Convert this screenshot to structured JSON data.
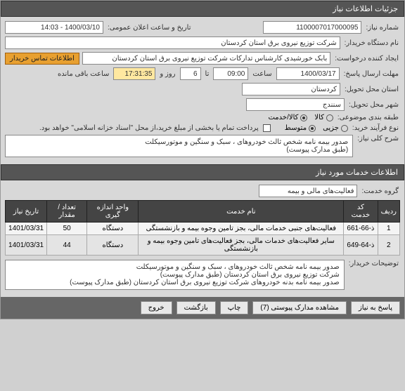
{
  "header": {
    "title": "جزئیات اطلاعات نیاز"
  },
  "fields": {
    "need_number_label": "شماره نیاز:",
    "need_number": "1100007017000095",
    "announce_label": "تاریخ و ساعت اعلان عمومی:",
    "announce_value": "1400/03/10 - 14:03",
    "buyer_label": "نام دستگاه خریدار:",
    "buyer_value": "شرکت توزیع نیروی برق استان کردستان",
    "creator_label": "ایجاد کننده درخواست:",
    "creator_value": "بابک خورشیدی کارشناس تدارکات شرکت توزیع نیروی برق استان کردستان",
    "contact_btn": "اطلاعات تماس خریدار",
    "deadline_label": "مهلت ارسال پاسخ:",
    "deadline_date": "1400/03/17",
    "deadline_time_label": "ساعت",
    "deadline_time": "09:00",
    "remaining_days": "6",
    "remaining_days_label": "روز و",
    "remaining_time": "17:31:35",
    "remaining_suffix": "ساعت باقی مانده",
    "deadline_to_label": "تا",
    "province_label": "استان محل تحویل:",
    "province_value": "کردستان",
    "city_label": "شهر محل تحویل:",
    "city_value": "سنندج",
    "category_label": "طبقه بندی موضوعی:",
    "cat_goods": "کالا",
    "cat_service": "کالا/خدمت",
    "purchase_type_label": "نوع فرآیند خرید:",
    "pt_partial": "جزیی",
    "pt_medium": "متوسط",
    "payment_note": "پرداخت تمام یا بخشی از مبلغ خرید،از محل \"اسناد خزانه اسلامی\" خواهد بود.",
    "need_desc_label": "شرح کلی نیاز:",
    "need_desc": "صدور بیمه نامه شخص ثالث خودروهای ، سبک  و سنگین  و موتورسیکلت\n(طبق مدارک پیوست)"
  },
  "services_header": "اطلاعات خدمات مورد نیاز",
  "service_group_label": "گروه خدمت:",
  "service_group_value": "فعالیت‌های مالی و بیمه",
  "table": {
    "cols": [
      "ردیف",
      "کد خدمت",
      "نام خدمت",
      "واحد اندازه گیری",
      "تعداد / مقدار",
      "تاریخ نیاز"
    ],
    "rows": [
      [
        "1",
        "ذ-66-661",
        "فعالیت‌های جنبی خدمات مالی، بجز تامین وجوه بیمه و بازنشستگی",
        "دستگاه",
        "50",
        "1401/03/31"
      ],
      [
        "2",
        "ذ-64-649",
        "سایر فعالیت‌های خدمات مالی، بجز فعالیت‌های تامین وجوه بیمه و بازنشستگی",
        "دستگاه",
        "44",
        "1401/03/31"
      ]
    ]
  },
  "buyer_notes_label": "توضیحات خریدار:",
  "buyer_notes": "صدور بیمه نامه شخص ثالث خودروهای ، سبک  و سنگین  و موتورسیکلت\nشرکت توزیع نیروی برق استان کردستان  (طبق مدارک پیوست)\nصدور بیمه نامه  بدنه  خودروهای شرکت توزیع نیروی برق استان کردستان (طبق مدارک پیوست)",
  "footer": {
    "reply": "پاسخ به نیاز",
    "attachments": "مشاهده مدارک پیوستی (7)",
    "print": "چاپ",
    "back": "بازگشت",
    "exit": "خروج"
  }
}
